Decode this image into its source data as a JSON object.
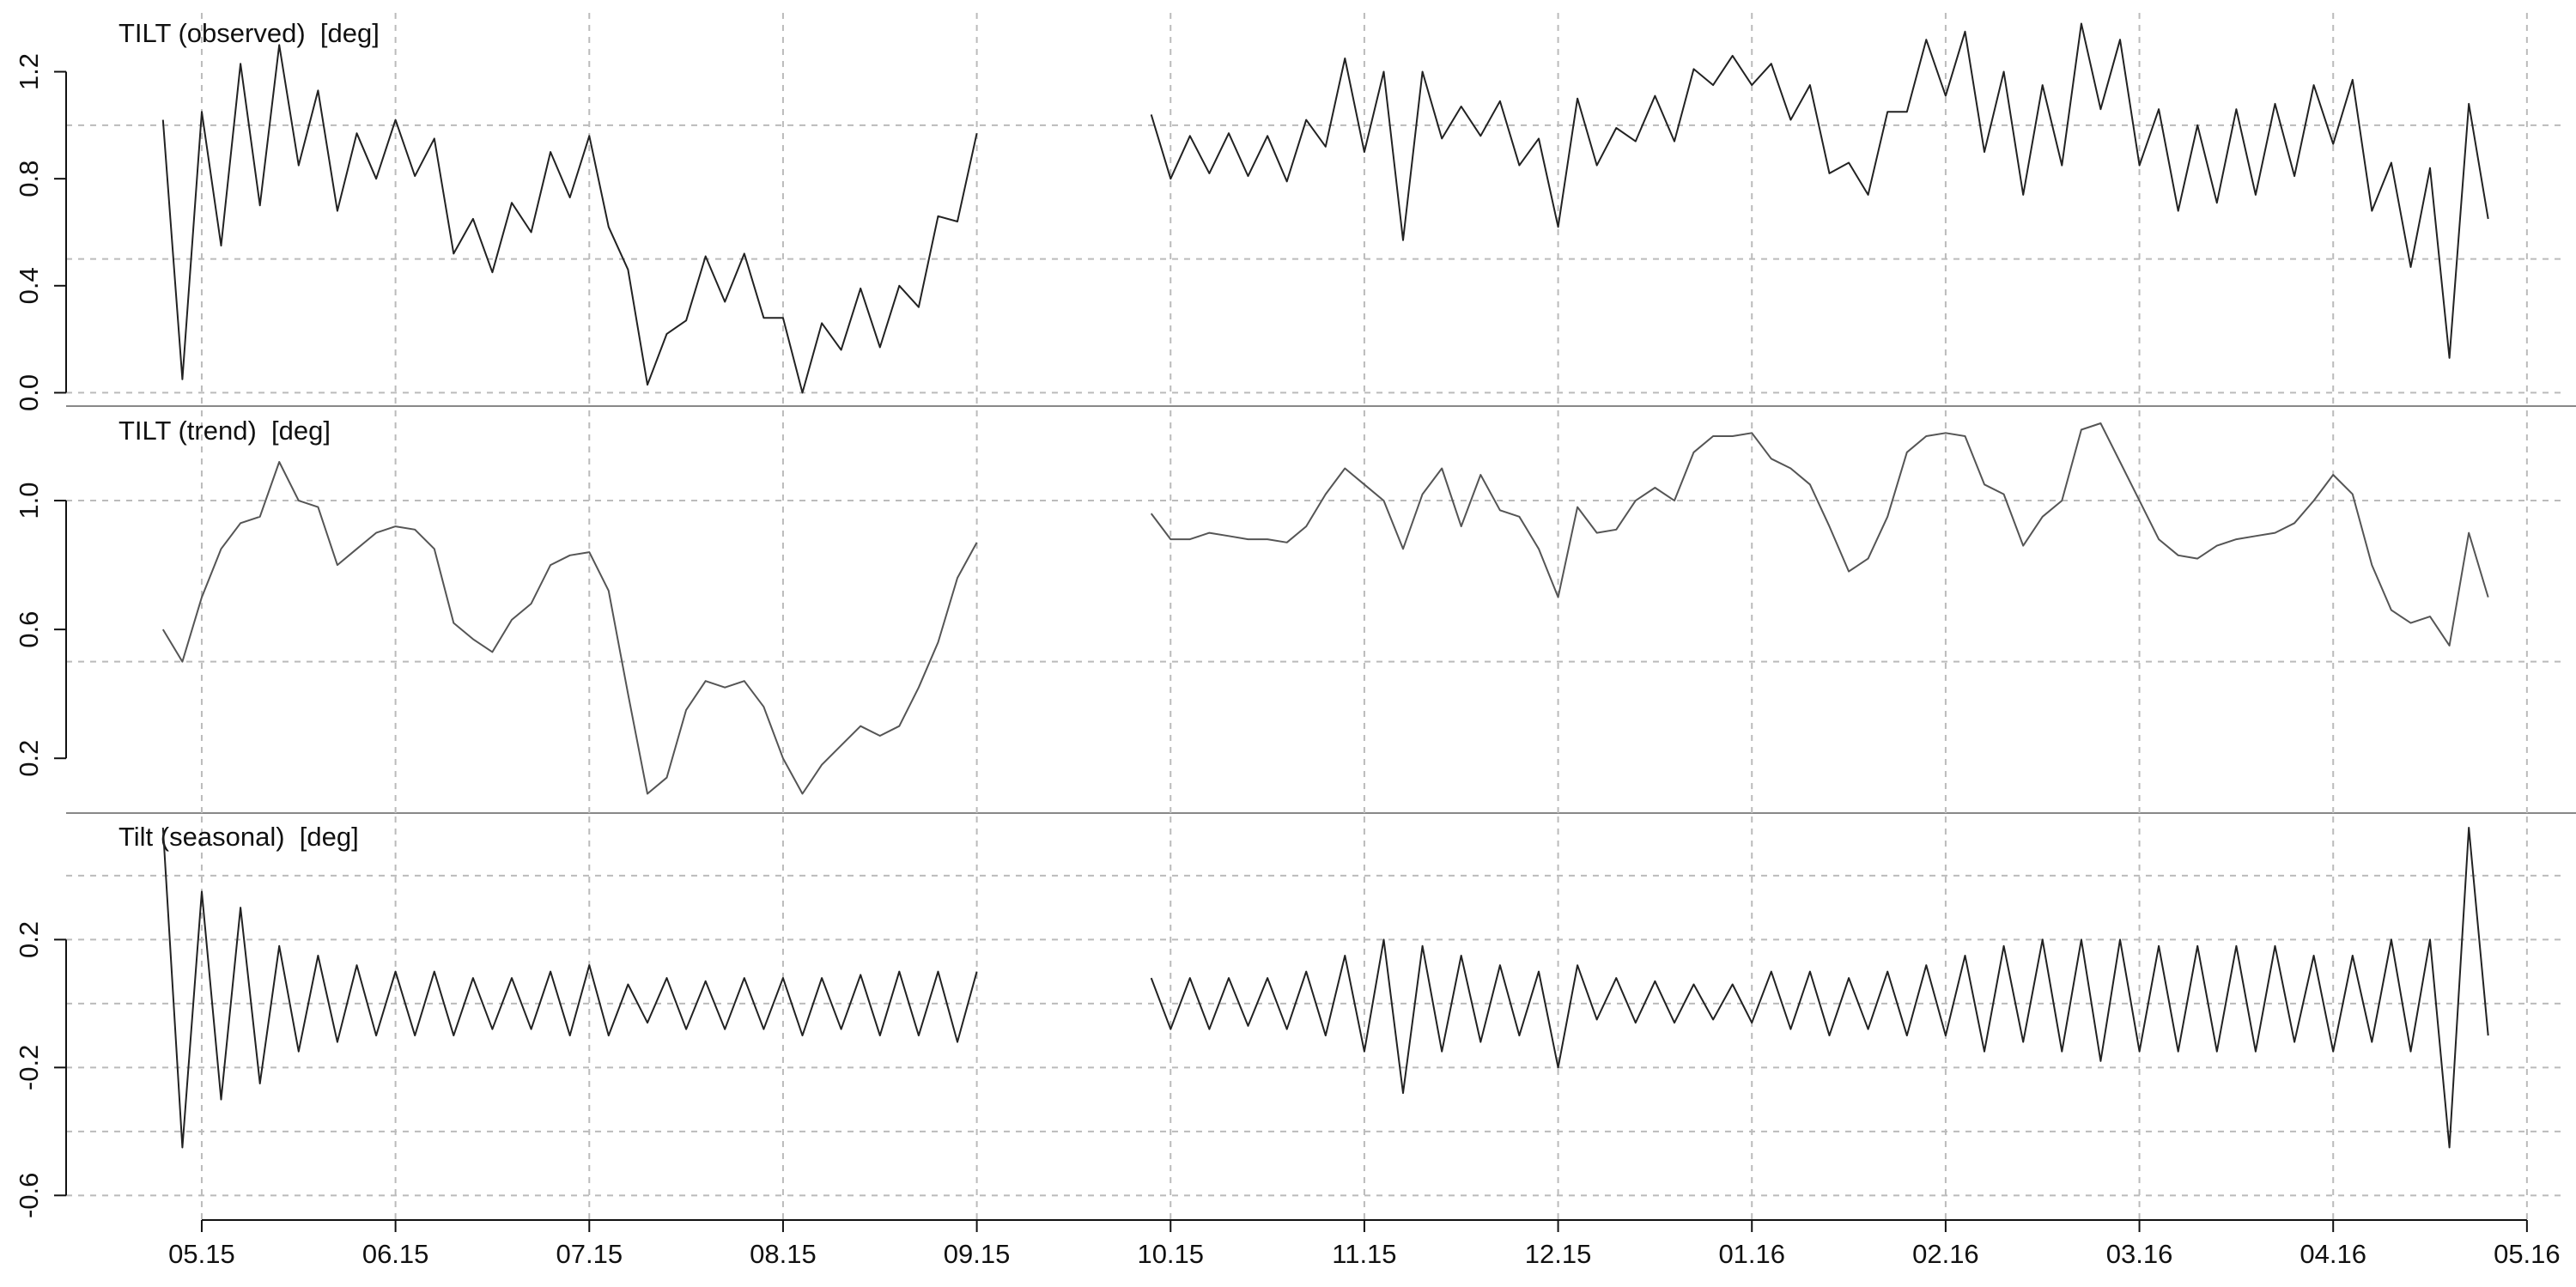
{
  "chart_data": [
    {
      "type": "line",
      "title": "TILT (observed)  [deg]",
      "color": "#222222",
      "x": [
        -0.2,
        -0.1,
        0,
        0.1,
        0.2,
        0.3,
        0.4,
        0.5,
        0.6,
        0.7,
        0.8,
        0.9,
        1,
        1.1,
        1.2,
        1.3,
        1.4,
        1.5,
        1.6,
        1.7,
        1.8,
        1.9,
        2,
        2.1,
        2.2,
        2.3,
        2.4,
        2.5,
        2.6,
        2.7,
        2.8,
        2.9,
        3,
        3.1,
        3.2,
        3.3,
        3.4,
        3.5,
        3.6,
        3.7,
        3.8,
        3.9,
        4,
        4.5,
        4.9,
        5,
        5.1,
        5.2,
        5.3,
        5.4,
        5.5,
        5.6,
        5.7,
        5.8,
        5.9,
        6,
        6.1,
        6.2,
        6.3,
        6.4,
        6.5,
        6.6,
        6.7,
        6.8,
        6.9,
        7,
        7.1,
        7.2,
        7.3,
        7.4,
        7.5,
        7.6,
        7.7,
        7.8,
        7.9,
        8,
        8.1,
        8.2,
        8.3,
        8.4,
        8.5,
        8.6,
        8.7,
        8.8,
        8.9,
        9,
        9.1,
        9.2,
        9.3,
        9.4,
        9.5,
        9.6,
        9.7,
        9.8,
        9.9,
        10,
        10.1,
        10.2,
        10.3,
        10.4,
        10.5,
        10.6,
        10.7,
        10.8,
        10.9,
        11,
        11.1,
        11.2,
        11.3,
        11.4,
        11.5,
        11.6,
        11.7,
        11.8
      ],
      "values": [
        1.02,
        0.05,
        1.05,
        0.55,
        1.23,
        0.7,
        1.3,
        0.85,
        1.13,
        0.68,
        0.97,
        0.8,
        1.02,
        0.81,
        0.95,
        0.52,
        0.65,
        0.45,
        0.71,
        0.6,
        0.9,
        0.73,
        0.96,
        0.62,
        0.46,
        0.03,
        0.22,
        0.27,
        0.51,
        0.34,
        0.52,
        0.28,
        0.28,
        0.0,
        0.26,
        0.16,
        0.39,
        0.17,
        0.4,
        0.32,
        0.66,
        0.64,
        0.97,
        null,
        1.04,
        0.8,
        0.96,
        0.82,
        0.97,
        0.81,
        0.96,
        0.79,
        1.02,
        0.92,
        1.25,
        0.9,
        1.2,
        0.57,
        1.2,
        0.95,
        1.07,
        0.96,
        1.09,
        0.85,
        0.95,
        0.62,
        1.1,
        0.85,
        0.99,
        0.94,
        1.11,
        0.94,
        1.21,
        1.15,
        1.26,
        1.15,
        1.23,
        1.02,
        1.15,
        0.82,
        0.86,
        0.74,
        1.05,
        1.05,
        1.32,
        1.11,
        1.35,
        0.9,
        1.2,
        0.74,
        1.15,
        0.85,
        1.38,
        1.06,
        1.32,
        0.85,
        1.06,
        0.68,
        1.0,
        0.71,
        1.06,
        0.74,
        1.08,
        0.81,
        1.15,
        0.93,
        1.17,
        0.68,
        0.86,
        0.47,
        0.84,
        0.13,
        1.08,
        0.65
      ],
      "ylim": [
        -0.05,
        1.42
      ],
      "yticks": [
        {
          "value": 0,
          "label": "0.0"
        },
        0.4,
        0.8,
        1.2
      ],
      "ygrid": [
        0,
        0.5,
        1
      ],
      "grid": true
    },
    {
      "type": "line",
      "title": "TILT (trend)  [deg]",
      "color": "#555555",
      "x": [
        -0.2,
        -0.1,
        0,
        0.1,
        0.2,
        0.3,
        0.4,
        0.5,
        0.6,
        0.7,
        0.8,
        0.9,
        1,
        1.1,
        1.2,
        1.3,
        1.4,
        1.5,
        1.6,
        1.7,
        1.8,
        1.9,
        2,
        2.1,
        2.2,
        2.3,
        2.4,
        2.5,
        2.6,
        2.7,
        2.8,
        2.9,
        3,
        3.1,
        3.2,
        3.3,
        3.4,
        3.5,
        3.6,
        3.7,
        3.8,
        3.9,
        4,
        4.5,
        4.9,
        5,
        5.1,
        5.2,
        5.3,
        5.4,
        5.5,
        5.6,
        5.7,
        5.8,
        5.9,
        6,
        6.1,
        6.2,
        6.3,
        6.4,
        6.5,
        6.6,
        6.7,
        6.8,
        6.9,
        7,
        7.1,
        7.2,
        7.3,
        7.4,
        7.5,
        7.6,
        7.7,
        7.8,
        7.9,
        8,
        8.1,
        8.2,
        8.3,
        8.4,
        8.5,
        8.6,
        8.7,
        8.8,
        8.9,
        9,
        9.1,
        9.2,
        9.3,
        9.4,
        9.5,
        9.6,
        9.7,
        9.8,
        9.9,
        10,
        10.1,
        10.2,
        10.3,
        10.4,
        10.5,
        10.6,
        10.7,
        10.8,
        10.9,
        11,
        11.1,
        11.2,
        11.3,
        11.4,
        11.5,
        11.6,
        11.7,
        11.8
      ],
      "values": [
        0.6,
        0.5,
        0.7,
        0.85,
        0.93,
        0.95,
        1.12,
        1.0,
        0.98,
        0.8,
        0.85,
        0.9,
        0.92,
        0.91,
        0.85,
        0.62,
        0.57,
        0.53,
        0.63,
        0.68,
        0.8,
        0.83,
        0.84,
        0.72,
        0.4,
        0.09,
        0.14,
        0.35,
        0.44,
        0.42,
        0.44,
        0.36,
        0.2,
        0.09,
        0.18,
        0.24,
        0.3,
        0.27,
        0.3,
        0.42,
        0.56,
        0.76,
        0.87,
        null,
        0.96,
        0.88,
        0.88,
        0.9,
        0.89,
        0.88,
        0.88,
        0.87,
        0.92,
        1.02,
        1.1,
        1.05,
        1.0,
        0.85,
        1.02,
        1.1,
        0.92,
        1.08,
        0.97,
        0.95,
        0.85,
        0.7,
        0.98,
        0.9,
        0.91,
        1.0,
        1.04,
        1.0,
        1.15,
        1.2,
        1.2,
        1.21,
        1.13,
        1.1,
        1.05,
        0.92,
        0.78,
        0.82,
        0.95,
        1.15,
        1.2,
        1.21,
        1.2,
        1.05,
        1.02,
        0.86,
        0.95,
        1.0,
        1.22,
        1.24,
        1.12,
        1.0,
        0.88,
        0.83,
        0.82,
        0.86,
        0.88,
        0.89,
        0.9,
        0.93,
        1.0,
        1.08,
        1.02,
        0.8,
        0.66,
        0.62,
        0.64,
        0.55,
        0.9,
        0.7
      ],
      "ylim": [
        0.03,
        1.28
      ],
      "yticks": [
        0.2,
        0.6,
        {
          "value": 1,
          "label": "1.0"
        }
      ],
      "ygrid": [
        0.5,
        1
      ],
      "grid": true
    },
    {
      "type": "line",
      "title": "Tilt (seasonal)  [deg]",
      "color": "#222222",
      "x": [
        -0.2,
        -0.1,
        0,
        0.1,
        0.2,
        0.3,
        0.4,
        0.5,
        0.6,
        0.7,
        0.8,
        0.9,
        1,
        1.1,
        1.2,
        1.3,
        1.4,
        1.5,
        1.6,
        1.7,
        1.8,
        1.9,
        2,
        2.1,
        2.2,
        2.3,
        2.4,
        2.5,
        2.6,
        2.7,
        2.8,
        2.9,
        3,
        3.1,
        3.2,
        3.3,
        3.4,
        3.5,
        3.6,
        3.7,
        3.8,
        3.9,
        4,
        4.5,
        4.9,
        5,
        5.1,
        5.2,
        5.3,
        5.4,
        5.5,
        5.6,
        5.7,
        5.8,
        5.9,
        6,
        6.1,
        6.2,
        6.3,
        6.4,
        6.5,
        6.6,
        6.7,
        6.8,
        6.9,
        7,
        7.1,
        7.2,
        7.3,
        7.4,
        7.5,
        7.6,
        7.7,
        7.8,
        7.9,
        8,
        8.1,
        8.2,
        8.3,
        8.4,
        8.5,
        8.6,
        8.7,
        8.8,
        8.9,
        9,
        9.1,
        9.2,
        9.3,
        9.4,
        9.5,
        9.6,
        9.7,
        9.8,
        9.9,
        10,
        10.1,
        10.2,
        10.3,
        10.4,
        10.5,
        10.6,
        10.7,
        10.8,
        10.9,
        11,
        11.1,
        11.2,
        11.3,
        11.4,
        11.5,
        11.6,
        11.7,
        11.8
      ],
      "values": [
        0.55,
        -0.45,
        0.35,
        -0.3,
        0.3,
        -0.25,
        0.18,
        -0.15,
        0.15,
        -0.12,
        0.12,
        -0.1,
        0.1,
        -0.1,
        0.1,
        -0.1,
        0.08,
        -0.08,
        0.08,
        -0.08,
        0.1,
        -0.1,
        0.12,
        -0.1,
        0.06,
        -0.06,
        0.08,
        -0.08,
        0.07,
        -0.08,
        0.08,
        -0.08,
        0.08,
        -0.1,
        0.08,
        -0.08,
        0.09,
        -0.1,
        0.1,
        -0.1,
        0.1,
        -0.12,
        0.1,
        null,
        0.08,
        -0.08,
        0.08,
        -0.08,
        0.08,
        -0.07,
        0.08,
        -0.08,
        0.1,
        -0.1,
        0.15,
        -0.15,
        0.2,
        -0.28,
        0.18,
        -0.15,
        0.15,
        -0.12,
        0.12,
        -0.1,
        0.1,
        -0.2,
        0.12,
        -0.05,
        0.08,
        -0.06,
        0.07,
        -0.06,
        0.06,
        -0.05,
        0.06,
        -0.06,
        0.1,
        -0.08,
        0.1,
        -0.1,
        0.08,
        -0.08,
        0.1,
        -0.1,
        0.12,
        -0.1,
        0.15,
        -0.15,
        0.18,
        -0.12,
        0.2,
        -0.15,
        0.2,
        -0.18,
        0.2,
        -0.15,
        0.18,
        -0.15,
        0.18,
        -0.15,
        0.18,
        -0.15,
        0.18,
        -0.12,
        0.15,
        -0.15,
        0.15,
        -0.12,
        0.2,
        -0.15,
        0.2,
        -0.45,
        0.55,
        -0.1
      ],
      "ylim": [
        -0.677,
        0.585
      ],
      "yticks": [
        -0.6,
        -0.2,
        0.2
      ],
      "ygrid": [
        -0.6,
        -0.4,
        -0.2,
        0,
        0.2,
        0.4
      ],
      "grid": true,
      "xlim": [
        -0.7,
        12.2
      ],
      "xticks": [
        {
          "value": 0,
          "label": "05.15"
        },
        {
          "value": 1,
          "label": "06.15"
        },
        {
          "value": 2,
          "label": "07.15"
        },
        {
          "value": 3,
          "label": "08.15"
        },
        {
          "value": 4,
          "label": "09.15"
        },
        {
          "value": 5,
          "label": "10.15"
        },
        {
          "value": 6,
          "label": "11.15"
        },
        {
          "value": 7,
          "label": "12.15"
        },
        {
          "value": 8,
          "label": "01.16"
        },
        {
          "value": 9,
          "label": "02.16"
        },
        {
          "value": 10,
          "label": "03.16"
        },
        {
          "value": 11,
          "label": "04.16"
        },
        {
          "value": 12,
          "label": "05.16"
        }
      ]
    }
  ]
}
